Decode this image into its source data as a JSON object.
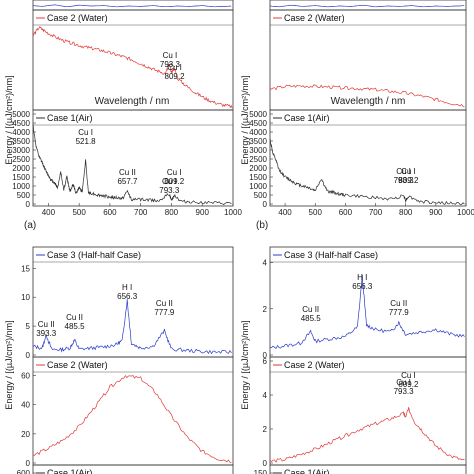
{
  "figure": {
    "energy_unit_label": "Energy / [(µJ/cm²)/nm]",
    "xlabel": "Wavelength / nm",
    "panel_a": "(a)",
    "panel_b": "(b)"
  },
  "colors": {
    "water": "#e03a3a",
    "air": "#2a2a2a",
    "halfhalf": "#2b3bc9"
  },
  "chart_data": [
    {
      "id": "a-top",
      "type": "line",
      "legend": "",
      "xlim": [
        350,
        1000
      ],
      "series": [
        {
          "x": [
            350,
            380,
            420,
            460,
            500,
            540,
            580,
            620,
            660,
            700,
            740,
            780,
            820,
            860,
            900,
            940,
            1000
          ],
          "y": [
            0.6,
            0.4,
            0.8,
            0.3,
            0.7,
            0.5,
            0.6,
            0.3,
            0.5,
            0.4,
            0.6,
            0.3,
            0.5,
            0.4,
            0.6,
            0.3,
            0.5
          ]
        }
      ]
    },
    {
      "id": "a-water",
      "type": "line",
      "legend": "Case 2 (Water)",
      "xlim": [
        350,
        1000
      ],
      "ylim": [
        0,
        350
      ],
      "annotations": [
        {
          "text": "Cu I\n793.3"
        },
        {
          "text": "Cu I\n809.2"
        }
      ],
      "series": [
        {
          "x": [
            350,
            370,
            390,
            420,
            450,
            480,
            510,
            540,
            570,
            600,
            630,
            660,
            690,
            720,
            750,
            780,
            793,
            800,
            809,
            820,
            850,
            880,
            910,
            940,
            970,
            1000
          ],
          "y": [
            270,
            300,
            285,
            265,
            250,
            240,
            230,
            222,
            215,
            205,
            195,
            185,
            170,
            155,
            140,
            128,
            160,
            130,
            150,
            110,
            80,
            55,
            35,
            20,
            10,
            5
          ]
        }
      ]
    },
    {
      "id": "a-air",
      "type": "line",
      "legend": "Case 1(Air)",
      "xlim": [
        350,
        1000
      ],
      "ylim": [
        0,
        5000
      ],
      "yticks": [
        0,
        500,
        1000,
        1500,
        2000,
        2500,
        3000,
        3500,
        4000,
        4500,
        5000
      ],
      "xticks": [
        400,
        500,
        600,
        700,
        800,
        900,
        1000
      ],
      "annotations": [
        {
          "text": "Cu I\n521.8"
        },
        {
          "text": "Cu II\n657.7"
        },
        {
          "text": "Cu I\n793.3"
        },
        {
          "text": "Cu I\n809.2"
        }
      ],
      "series": [
        {
          "x": [
            350,
            360,
            370,
            380,
            390,
            400,
            410,
            420,
            430,
            440,
            450,
            460,
            470,
            480,
            490,
            500,
            510,
            521,
            530,
            540,
            560,
            580,
            600,
            620,
            640,
            657,
            670,
            700,
            730,
            760,
            793,
            800,
            809,
            830,
            860,
            900,
            950,
            1000
          ],
          "y": [
            4400,
            3200,
            2600,
            2300,
            1900,
            1600,
            1300,
            1200,
            900,
            1800,
            800,
            1500,
            700,
            1100,
            600,
            900,
            700,
            2400,
            650,
            600,
            500,
            450,
            380,
            350,
            300,
            700,
            260,
            250,
            220,
            200,
            550,
            200,
            500,
            150,
            120,
            80,
            40,
            20
          ]
        }
      ]
    },
    {
      "id": "b-top",
      "type": "line",
      "legend": "",
      "xlim": [
        350,
        1000
      ],
      "series": [
        {
          "x": [
            350,
            380,
            420,
            460,
            500,
            540,
            580,
            620,
            660,
            700,
            740,
            780,
            820,
            860,
            900,
            940,
            1000
          ],
          "y": [
            0.5,
            0.3,
            0.7,
            0.4,
            0.6,
            0.3,
            0.5,
            0.4,
            0.7,
            0.3,
            0.5,
            0.4,
            0.6,
            0.3,
            0.5,
            0.4,
            0.6
          ]
        }
      ]
    },
    {
      "id": "b-water",
      "type": "line",
      "legend": "Case 2 (Water)",
      "xlim": [
        350,
        1000
      ],
      "ylim": [
        0,
        350
      ],
      "series": [
        {
          "x": [
            350,
            400,
            450,
            500,
            550,
            600,
            650,
            700,
            750,
            800,
            850,
            900,
            950,
            1000
          ],
          "y": [
            70,
            80,
            82,
            80,
            78,
            75,
            72,
            68,
            62,
            55,
            45,
            32,
            18,
            8
          ]
        }
      ]
    },
    {
      "id": "b-air",
      "type": "line",
      "legend": "Case 1(Air)",
      "xlim": [
        350,
        1000
      ],
      "ylim": [
        0,
        5000
      ],
      "yticks": [
        0,
        500,
        1000,
        1500,
        2000,
        2500,
        3000,
        3500,
        4000,
        4500,
        5000
      ],
      "xticks": [
        400,
        500,
        600,
        700,
        800,
        900,
        1000
      ],
      "annotations": [
        {
          "text": "Cu I\n793.3"
        },
        {
          "text": "Cu I\n809.2"
        }
      ],
      "series": [
        {
          "x": [
            350,
            360,
            370,
            380,
            400,
            420,
            440,
            460,
            480,
            500,
            520,
            540,
            560,
            580,
            600,
            650,
            700,
            750,
            793,
            800,
            809,
            850,
            900,
            950,
            1000
          ],
          "y": [
            3600,
            2800,
            2400,
            1900,
            1500,
            1300,
            1100,
            1000,
            900,
            750,
            1400,
            700,
            650,
            550,
            500,
            420,
            350,
            260,
            480,
            200,
            420,
            120,
            80,
            40,
            20
          ]
        }
      ]
    },
    {
      "id": "c-half",
      "type": "line",
      "legend": "Case 3 (Half-half Case)",
      "xlim": [
        350,
        1000
      ],
      "ylim": [
        0,
        18
      ],
      "yticks": [
        0,
        5,
        10,
        15
      ],
      "annotations": [
        {
          "text": "Cu II\n393.3"
        },
        {
          "text": "Cu II\n485.5"
        },
        {
          "text": "H I\n656.3"
        },
        {
          "text": "Cu II\n777.9"
        }
      ],
      "series": [
        {
          "x": [
            350,
            380,
            393,
            410,
            440,
            470,
            485,
            500,
            540,
            580,
            620,
            640,
            656,
            670,
            700,
            740,
            777,
            800,
            850,
            900,
            950,
            1000
          ],
          "y": [
            1.5,
            1.2,
            3.5,
            1.0,
            0.9,
            1.2,
            2.6,
            1.0,
            1.2,
            1.4,
            1.8,
            2.5,
            9.5,
            2.0,
            1.2,
            1.5,
            4.2,
            1.0,
            0.8,
            0.6,
            0.5,
            0.5
          ]
        }
      ]
    },
    {
      "id": "c-water",
      "type": "line",
      "legend": "Case 2 (Water)",
      "xlim": [
        350,
        1000
      ],
      "ylim": [
        0,
        70
      ],
      "yticks": [
        0,
        20,
        40,
        60
      ],
      "series": [
        {
          "x": [
            350,
            400,
            450,
            500,
            550,
            600,
            650,
            700,
            750,
            800,
            850,
            900,
            950,
            1000
          ],
          "y": [
            5,
            10,
            16,
            25,
            38,
            52,
            60,
            58,
            48,
            32,
            18,
            8,
            3,
            1
          ]
        }
      ]
    },
    {
      "id": "c-air",
      "type": "line",
      "legend": "Case 1(Air)",
      "xlim": [
        350,
        1000
      ],
      "yticks": [
        600
      ],
      "series": []
    },
    {
      "id": "d-half",
      "type": "line",
      "legend": "Case 3 (Half-half Case)",
      "xlim": [
        350,
        1000
      ],
      "ylim": [
        0,
        4.5
      ],
      "yticks": [
        0,
        2,
        4
      ],
      "annotations": [
        {
          "text": "H I\n656.3"
        },
        {
          "text": "Cu II\n485.5"
        },
        {
          "text": "Cu II\n777.9"
        }
      ],
      "series": [
        {
          "x": [
            350,
            400,
            450,
            485,
            500,
            550,
            600,
            640,
            656,
            670,
            700,
            750,
            777,
            800,
            850,
            900,
            950,
            1000
          ],
          "y": [
            0.3,
            0.4,
            0.5,
            1.0,
            0.6,
            0.7,
            0.8,
            1.2,
            3.4,
            1.3,
            1.1,
            1.0,
            1.4,
            0.9,
            1.0,
            1.1,
            0.9,
            0.8
          ]
        }
      ]
    },
    {
      "id": "d-water",
      "type": "line",
      "legend": "Case 2 (Water)",
      "xlim": [
        350,
        1000
      ],
      "ylim": [
        0,
        6
      ],
      "yticks": [
        0,
        2,
        4,
        6
      ],
      "annotations": [
        {
          "text": "Cu I\n793.3"
        },
        {
          "text": "Cu I\n809.2"
        }
      ],
      "series": [
        {
          "x": [
            350,
            400,
            450,
            500,
            550,
            600,
            650,
            700,
            750,
            793,
            800,
            809,
            830,
            860,
            900,
            950,
            1000
          ],
          "y": [
            0.1,
            0.2,
            0.5,
            0.8,
            1.2,
            1.6,
            2.0,
            2.3,
            2.6,
            2.9,
            2.7,
            3.2,
            2.4,
            1.8,
            1.0,
            0.4,
            0.1
          ]
        }
      ]
    },
    {
      "id": "d-air",
      "type": "line",
      "legend": "Case 1(Air)",
      "xlim": [
        350,
        1000
      ],
      "yticks": [
        150
      ],
      "series": []
    }
  ]
}
